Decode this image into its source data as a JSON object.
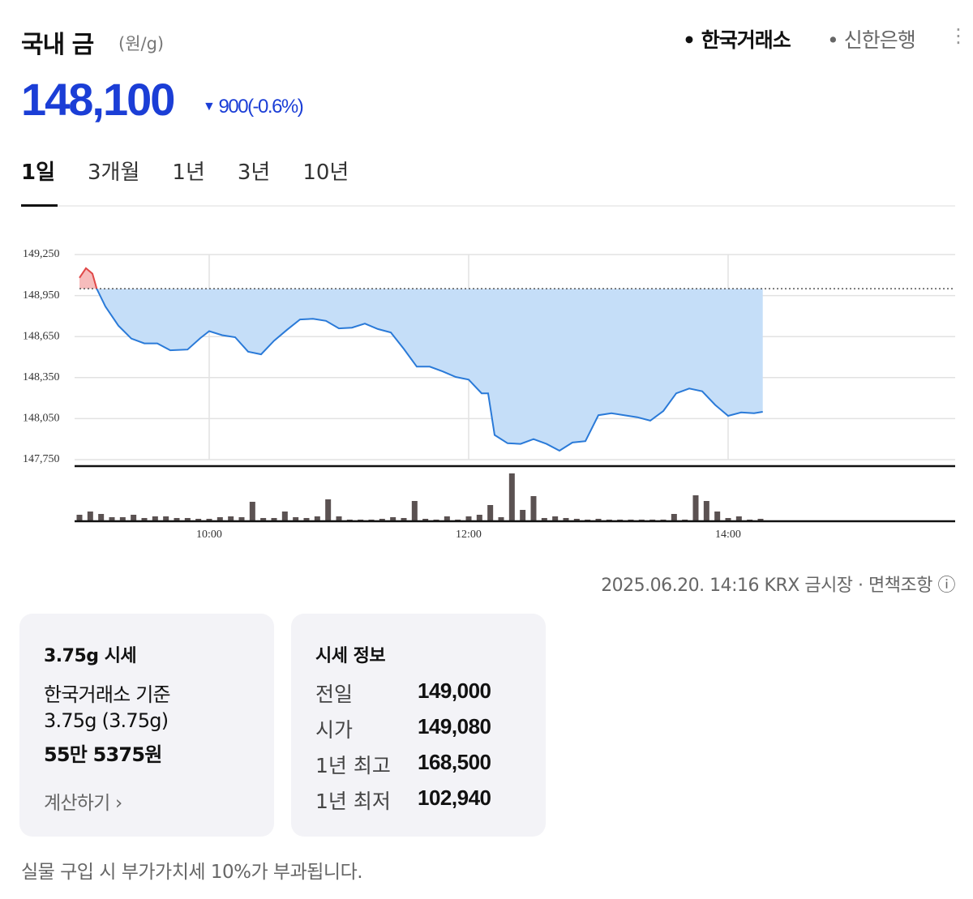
{
  "header": {
    "title": "국내 금",
    "unit": "(원/g)",
    "sources": [
      "한국거래소",
      "신한은행"
    ],
    "price": "148,100",
    "change": "900",
    "change_pct": "(-0.6%)"
  },
  "tabs": [
    "1일",
    "3개월",
    "1년",
    "3년",
    "10년"
  ],
  "chart_data": {
    "type": "line",
    "x": [
      "09:00",
      "09:03",
      "09:06",
      "09:08",
      "09:12",
      "09:18",
      "09:24",
      "09:30",
      "09:36",
      "09:42",
      "09:50",
      "09:56",
      "10:00",
      "10:06",
      "10:12",
      "10:18",
      "10:24",
      "10:30",
      "10:36",
      "10:42",
      "10:48",
      "10:54",
      "11:00",
      "11:06",
      "11:12",
      "11:18",
      "11:24",
      "11:30",
      "11:36",
      "11:42",
      "11:48",
      "11:54",
      "12:00",
      "12:06",
      "12:09",
      "12:12",
      "12:18",
      "12:24",
      "12:30",
      "12:36",
      "12:42",
      "12:48",
      "12:54",
      "13:00",
      "13:06",
      "13:12",
      "13:18",
      "13:24",
      "13:30",
      "13:36",
      "13:42",
      "13:48",
      "13:54",
      "14:00",
      "14:06",
      "14:12",
      "14:16"
    ],
    "values": [
      149080,
      149150,
      149110,
      149000,
      148870,
      148730,
      148635,
      148600,
      148600,
      148550,
      148555,
      148640,
      148690,
      148660,
      148645,
      148540,
      148520,
      148620,
      148700,
      148775,
      148780,
      148765,
      148710,
      148715,
      148745,
      148705,
      148680,
      148560,
      148430,
      148430,
      148395,
      148355,
      148335,
      148235,
      148235,
      147930,
      147870,
      147865,
      147900,
      147865,
      147815,
      147875,
      147885,
      148075,
      148090,
      148075,
      148060,
      148035,
      148105,
      148235,
      148270,
      148250,
      148150,
      148070,
      148095,
      148090,
      148100
    ],
    "base": 149000,
    "color": "#2a7ad8",
    "fill_color": "#c5def8",
    "above_color": "#e04848",
    "above_fill_color": "#f6bcbc",
    "xlim": [
      "09:00",
      "15:45"
    ],
    "xticks": [
      "10:00",
      "12:00",
      "14:00"
    ],
    "ylim": [
      147750,
      149250
    ],
    "yticks": [
      {
        "value": 149250,
        "label": "149,250"
      },
      {
        "value": 148950,
        "label": "148,950"
      },
      {
        "value": 148650,
        "label": "148,650"
      },
      {
        "value": 148350,
        "label": "148,350"
      },
      {
        "value": 148050,
        "label": "148,050"
      },
      {
        "value": 147750,
        "label": "147,750"
      }
    ],
    "grid": true,
    "volume": {
      "color": "#5b5252",
      "ylim": [
        0,
        60
      ],
      "x": [
        "09:00",
        "09:05",
        "09:10",
        "09:15",
        "09:20",
        "09:25",
        "09:30",
        "09:35",
        "09:40",
        "09:45",
        "09:50",
        "09:55",
        "10:00",
        "10:05",
        "10:10",
        "10:15",
        "10:20",
        "10:25",
        "10:30",
        "10:35",
        "10:40",
        "10:45",
        "10:50",
        "10:55",
        "11:00",
        "11:05",
        "11:10",
        "11:15",
        "11:20",
        "11:25",
        "11:30",
        "11:35",
        "11:40",
        "11:45",
        "11:50",
        "11:55",
        "12:00",
        "12:05",
        "12:10",
        "12:15",
        "12:20",
        "12:25",
        "12:30",
        "12:35",
        "12:40",
        "12:45",
        "12:50",
        "12:55",
        "13:00",
        "13:05",
        "13:10",
        "13:15",
        "13:20",
        "13:25",
        "13:30",
        "13:35",
        "13:40",
        "13:45",
        "13:50",
        "13:55",
        "14:00",
        "14:05",
        "14:10",
        "14:15"
      ],
      "values": [
        8,
        12,
        9,
        5,
        5,
        8,
        4,
        6,
        6,
        4,
        4,
        3,
        3,
        5,
        6,
        5,
        24,
        4,
        4,
        12,
        5,
        4,
        6,
        27,
        6,
        2,
        2,
        2,
        3,
        5,
        4,
        25,
        3,
        2,
        6,
        2,
        6,
        8,
        20,
        5,
        59,
        14,
        31,
        4,
        6,
        4,
        3,
        2,
        3,
        2,
        2,
        2,
        2,
        2,
        2,
        9,
        2,
        32,
        25,
        12,
        4,
        6,
        2,
        3
      ]
    }
  },
  "meta": {
    "timestamp": "2025.06.20. 14:16",
    "market": "KRX 금시장",
    "disclaimer": "면책조항"
  },
  "card_unit": {
    "title": "3.75g 시세",
    "basis": "한국거래소 기준",
    "weight": "3.75g (3.75g)",
    "price": "55만 5375원",
    "action": "계산하기"
  },
  "card_info": {
    "title": "시세 정보",
    "rows": [
      [
        "전일",
        "149,000"
      ],
      [
        "시가",
        "149,080"
      ],
      [
        "1년 최고",
        "168,500"
      ],
      [
        "1년 최저",
        "102,940"
      ]
    ]
  },
  "footer": "실물 구입 시 부가가치세 10%가 부과됩니다."
}
